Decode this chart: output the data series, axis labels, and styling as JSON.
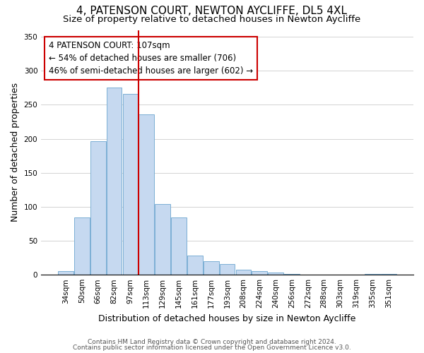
{
  "title": "4, PATENSON COURT, NEWTON AYCLIFFE, DL5 4XL",
  "subtitle": "Size of property relative to detached houses in Newton Aycliffe",
  "xlabel": "Distribution of detached houses by size in Newton Aycliffe",
  "ylabel": "Number of detached properties",
  "bar_labels": [
    "34sqm",
    "50sqm",
    "66sqm",
    "82sqm",
    "97sqm",
    "113sqm",
    "129sqm",
    "145sqm",
    "161sqm",
    "177sqm",
    "193sqm",
    "208sqm",
    "224sqm",
    "240sqm",
    "256sqm",
    "272sqm",
    "288sqm",
    "303sqm",
    "319sqm",
    "335sqm",
    "351sqm"
  ],
  "bar_values": [
    5,
    84,
    196,
    275,
    266,
    236,
    104,
    84,
    28,
    20,
    16,
    7,
    5,
    3,
    1,
    0,
    0,
    0,
    0,
    1,
    1
  ],
  "bar_color": "#c6d9f0",
  "bar_edge_color": "#7bafd4",
  "vline_color": "#cc0000",
  "annotation_title": "4 PATENSON COURT: 107sqm",
  "annotation_line1": "← 54% of detached houses are smaller (706)",
  "annotation_line2": "46% of semi-detached houses are larger (602) →",
  "annotation_box_color": "#ffffff",
  "annotation_box_edge": "#cc0000",
  "ylim": [
    0,
    360
  ],
  "footnote1": "Contains HM Land Registry data © Crown copyright and database right 2024.",
  "footnote2": "Contains public sector information licensed under the Open Government Licence v3.0.",
  "title_fontsize": 11,
  "subtitle_fontsize": 9.5,
  "xlabel_fontsize": 9,
  "ylabel_fontsize": 9,
  "tick_fontsize": 7.5,
  "annotation_fontsize": 8.5,
  "footnote_fontsize": 6.5,
  "background_color": "#ffffff"
}
